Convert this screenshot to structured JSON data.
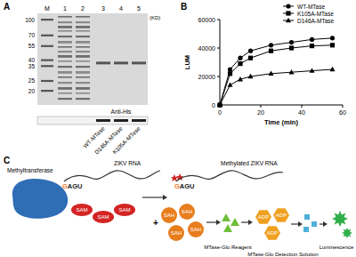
{
  "chart_data": {
    "type": "line",
    "title": "B",
    "x_label": "Time (min)",
    "y_label": "LUM",
    "x": [
      0,
      5,
      10,
      15,
      25,
      35,
      45,
      55
    ],
    "series": [
      {
        "name": "WT-MTase",
        "color": "#000000",
        "marker": "circle",
        "values": [
          0,
          25000,
          33000,
          38000,
          42000,
          44000,
          46000,
          47000
        ]
      },
      {
        "name": "K105A-MTase",
        "color": "#000000",
        "marker": "square",
        "values": [
          0,
          22000,
          29000,
          33000,
          38000,
          40000,
          41500,
          42000
        ]
      },
      {
        "name": "D146A-MTase",
        "color": "#000000",
        "marker": "triangle",
        "values": [
          0,
          14000,
          18000,
          20000,
          22000,
          23000,
          24000,
          25000
        ]
      }
    ],
    "xlim": [
      0,
      60
    ],
    "ylim": [
      0,
      60000
    ],
    "xticks": [
      0,
      20,
      40,
      60
    ],
    "yticks": [
      0,
      20000,
      40000,
      60000
    ],
    "legend": "upper right"
  },
  "panel_a": {
    "label": "A",
    "lanes": [
      "M",
      "1",
      "2",
      "3",
      "4",
      "5"
    ],
    "marker_unit": "(KD)",
    "marker_sizes": [
      100,
      70,
      55,
      40,
      35,
      25,
      20
    ],
    "blot_label": "Anti-His",
    "samples": [
      "WT-MTase",
      "D146A-MTase",
      "K105A-MTase"
    ]
  },
  "panel_c": {
    "label": "C",
    "enzyme": "Methyltransferase",
    "rna": "ZIKV RNA",
    "motif": [
      "G",
      "AGU"
    ],
    "cofactor": "SAM",
    "plus": "+",
    "product_rna": "Methylated ZIKV RNA",
    "byproduct": "SAH",
    "reagent": "MTase-Glo Reagent",
    "intermediate": "ADP",
    "detection": "MTase-Glo Detection Solution",
    "signal": "Luminescence"
  }
}
